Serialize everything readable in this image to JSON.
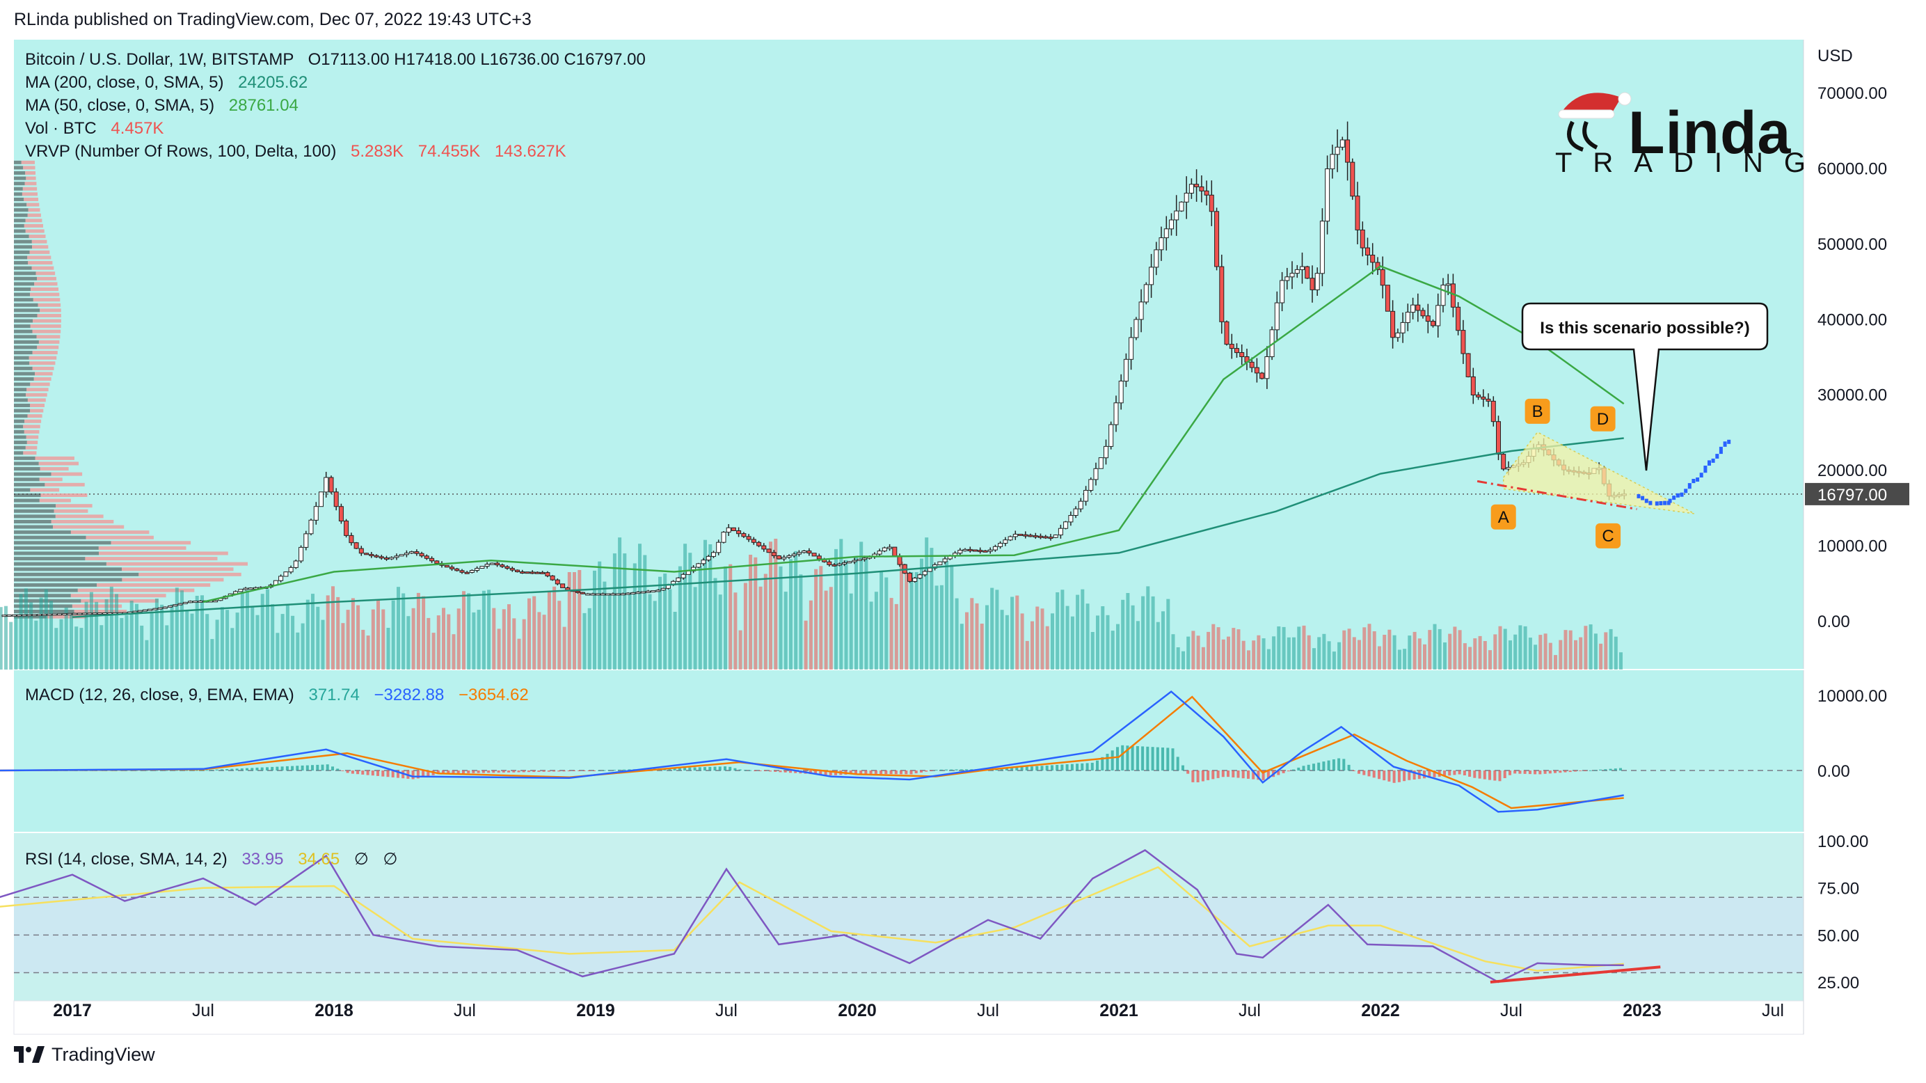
{
  "header": {
    "published": "RLinda published on TradingView.com, Dec 07, 2022 19:43 UTC+3"
  },
  "footer": {
    "brand": "TradingView"
  },
  "logo": {
    "name": "Linda",
    "sub": "TRADING"
  },
  "legend": {
    "symbol": "Bitcoin / U.S. Dollar, 1W, BITSTAMP",
    "ohlc": "O17113.00  H17418.00  L16736.00  C16797.00",
    "ma200_label": "MA (200, close, 0, SMA, 5)",
    "ma200_value": "24205.62",
    "ma50_label": "MA (50, close, 0, SMA, 5)",
    "ma50_value": "28761.04",
    "vol_label": "Vol · BTC",
    "vol_value": "4.457K",
    "vrvp_label": "VRVP (Number Of Rows, 100, Delta, 100)",
    "vrvp_v1": "5.283K",
    "vrvp_v2": "74.455K",
    "vrvp_v3": "143.627K"
  },
  "macd": {
    "label": "MACD (12, 26, close, 9, EMA, EMA)",
    "v1": "371.74",
    "v2": "−3282.88",
    "v3": "−3654.62"
  },
  "rsi": {
    "label": "RSI (14, close, SMA, 14, 2)",
    "v1": "33.95",
    "v2": "34.65",
    "v3": "∅",
    "v4": "∅"
  },
  "annotation": {
    "text": "Is this scenario possible?)"
  },
  "wave_labels": [
    "A",
    "B",
    "C",
    "D"
  ],
  "colors": {
    "bg_main": "#b9f2ee",
    "bg_rsi": "#c8f1ee",
    "up": "#26a69a",
    "down": "#ef5350",
    "ma50": "#3aa844",
    "ma200": "#1f8f77",
    "macd": "#2962ff",
    "signal": "#f57c00",
    "rsi": "#7e57c2",
    "rsi_ma": "#f6e05e",
    "wave_badge": "#f89c1c",
    "trend": "#e53935",
    "projection": "#2962ff"
  },
  "chart_data": {
    "type": "candlestick",
    "title": "Bitcoin / U.S. Dollar, 1W, BITSTAMP",
    "currency": "USD",
    "last_price": "16797.00",
    "price_axis_ticks": [
      "70000.00",
      "60000.00",
      "50000.00",
      "40000.00",
      "30000.00",
      "20000.00",
      "10000.00",
      "0.00"
    ],
    "price_axis_values": [
      70000,
      60000,
      50000,
      40000,
      30000,
      20000,
      10000,
      0
    ],
    "macd_axis_ticks": [
      "10000.00",
      "0.00"
    ],
    "rsi_axis_ticks": [
      "100.00",
      "75.00",
      "50.00",
      "25.00"
    ],
    "time_labels": [
      "2017",
      "Jul",
      "2018",
      "Jul",
      "2019",
      "Jul",
      "2020",
      "Jul",
      "2021",
      "Jul",
      "2022",
      "Jul",
      "2023",
      "Jul"
    ],
    "time_values": [
      2017.0,
      2017.5,
      2018.0,
      2018.5,
      2019.0,
      2019.5,
      2020.0,
      2020.5,
      2021.0,
      2021.5,
      2022.0,
      2022.5,
      2023.0,
      2023.5
    ],
    "price_path": [
      [
        2016.72,
        750
      ],
      [
        2016.9,
        900
      ],
      [
        2017.0,
        1000
      ],
      [
        2017.2,
        1100
      ],
      [
        2017.35,
        1800
      ],
      [
        2017.45,
        2600
      ],
      [
        2017.55,
        2700
      ],
      [
        2017.65,
        4300
      ],
      [
        2017.75,
        4500
      ],
      [
        2017.85,
        7500
      ],
      [
        2017.93,
        15000
      ],
      [
        2017.97,
        19000
      ],
      [
        2018.05,
        11000
      ],
      [
        2018.1,
        9000
      ],
      [
        2018.2,
        8200
      ],
      [
        2018.3,
        9200
      ],
      [
        2018.4,
        7500
      ],
      [
        2018.5,
        6300
      ],
      [
        2018.6,
        7700
      ],
      [
        2018.7,
        6500
      ],
      [
        2018.8,
        6400
      ],
      [
        2018.88,
        4200
      ],
      [
        2018.95,
        3600
      ],
      [
        2019.1,
        3600
      ],
      [
        2019.25,
        4100
      ],
      [
        2019.35,
        6500
      ],
      [
        2019.45,
        9000
      ],
      [
        2019.5,
        12500
      ],
      [
        2019.6,
        10500
      ],
      [
        2019.7,
        8200
      ],
      [
        2019.8,
        9300
      ],
      [
        2019.9,
        7300
      ],
      [
        2020.05,
        8500
      ],
      [
        2020.12,
        10000
      ],
      [
        2020.2,
        5200
      ],
      [
        2020.3,
        7500
      ],
      [
        2020.4,
        9500
      ],
      [
        2020.5,
        9200
      ],
      [
        2020.6,
        11500
      ],
      [
        2020.75,
        11000
      ],
      [
        2020.85,
        15500
      ],
      [
        2020.95,
        23000
      ],
      [
        2021.05,
        38000
      ],
      [
        2021.15,
        50000
      ],
      [
        2021.28,
        58000
      ],
      [
        2021.35,
        56000
      ],
      [
        2021.4,
        37000
      ],
      [
        2021.47,
        35000
      ],
      [
        2021.55,
        32000
      ],
      [
        2021.62,
        45000
      ],
      [
        2021.7,
        47000
      ],
      [
        2021.75,
        43000
      ],
      [
        2021.8,
        61000
      ],
      [
        2021.86,
        64000
      ],
      [
        2021.92,
        50000
      ],
      [
        2022.0,
        46000
      ],
      [
        2022.05,
        37000
      ],
      [
        2022.12,
        42000
      ],
      [
        2022.2,
        39000
      ],
      [
        2022.25,
        46000
      ],
      [
        2022.35,
        30000
      ],
      [
        2022.42,
        29000
      ],
      [
        2022.46,
        20000
      ],
      [
        2022.55,
        21000
      ],
      [
        2022.6,
        23500
      ],
      [
        2022.7,
        20000
      ],
      [
        2022.8,
        19500
      ],
      [
        2022.83,
        20800
      ],
      [
        2022.87,
        16500
      ],
      [
        2022.93,
        16797
      ]
    ],
    "ma50_path": [
      [
        2017.5,
        2500
      ],
      [
        2018.0,
        6500
      ],
      [
        2018.6,
        8000
      ],
      [
        2019.3,
        6500
      ],
      [
        2020.0,
        8500
      ],
      [
        2020.6,
        8700
      ],
      [
        2021.0,
        12000
      ],
      [
        2021.4,
        32000
      ],
      [
        2021.8,
        42000
      ],
      [
        2022.0,
        47000
      ],
      [
        2022.3,
        43000
      ],
      [
        2022.6,
        37000
      ],
      [
        2022.93,
        28761
      ]
    ],
    "ma200_path": [
      [
        2017.0,
        500
      ],
      [
        2018.0,
        2500
      ],
      [
        2019.0,
        4200
      ],
      [
        2020.0,
        6300
      ],
      [
        2021.0,
        9000
      ],
      [
        2021.6,
        14500
      ],
      [
        2022.0,
        19500
      ],
      [
        2022.5,
        22500
      ],
      [
        2022.93,
        24206
      ]
    ],
    "projection_points": [
      [
        2022.98,
        15800
      ],
      [
        2023.05,
        15900
      ],
      [
        2023.1,
        17000
      ],
      [
        2023.16,
        19000
      ],
      [
        2023.22,
        21500
      ],
      [
        2023.28,
        24000
      ]
    ],
    "wave_points": {
      "A": [
        2022.47,
        18000
      ],
      "B": [
        2022.6,
        25000
      ],
      "C": [
        2022.87,
        15500
      ],
      "D": [
        2022.85,
        24000
      ]
    },
    "macd_axis_values": [
      10000,
      0
    ],
    "macd_path": [
      [
        2016.72,
        0
      ],
      [
        2017.5,
        200
      ],
      [
        2017.97,
        2800
      ],
      [
        2018.3,
        -800
      ],
      [
        2018.9,
        -1000
      ],
      [
        2019.5,
        1500
      ],
      [
        2019.9,
        -800
      ],
      [
        2020.2,
        -1200
      ],
      [
        2020.5,
        300
      ],
      [
        2020.9,
        2500
      ],
      [
        2021.2,
        10500
      ],
      [
        2021.4,
        4500
      ],
      [
        2021.55,
        -1600
      ],
      [
        2021.7,
        2500
      ],
      [
        2021.85,
        5800
      ],
      [
        2022.05,
        500
      ],
      [
        2022.3,
        -2000
      ],
      [
        2022.45,
        -5500
      ],
      [
        2022.6,
        -5200
      ],
      [
        2022.93,
        -3283
      ]
    ],
    "signal_path": [
      [
        2016.72,
        0
      ],
      [
        2017.5,
        150
      ],
      [
        2018.05,
        2300
      ],
      [
        2018.4,
        -400
      ],
      [
        2018.9,
        -900
      ],
      [
        2019.55,
        1100
      ],
      [
        2020.0,
        -500
      ],
      [
        2020.3,
        -800
      ],
      [
        2020.5,
        100
      ],
      [
        2021.0,
        1800
      ],
      [
        2021.28,
        9800
      ],
      [
        2021.55,
        -300
      ],
      [
        2021.9,
        4800
      ],
      [
        2022.1,
        1300
      ],
      [
        2022.35,
        -2200
      ],
      [
        2022.5,
        -5000
      ],
      [
        2022.93,
        -3655
      ]
    ],
    "rsi_axis_values": [
      100,
      75,
      50,
      25
    ],
    "rsi_levels": [
      70,
      50,
      30
    ],
    "rsi_path": [
      [
        2016.72,
        70
      ],
      [
        2017.0,
        82
      ],
      [
        2017.2,
        68
      ],
      [
        2017.5,
        80
      ],
      [
        2017.7,
        66
      ],
      [
        2017.97,
        92
      ],
      [
        2018.15,
        50
      ],
      [
        2018.4,
        44
      ],
      [
        2018.7,
        42
      ],
      [
        2018.95,
        28
      ],
      [
        2019.3,
        40
      ],
      [
        2019.5,
        85
      ],
      [
        2019.7,
        45
      ],
      [
        2019.95,
        50
      ],
      [
        2020.2,
        35
      ],
      [
        2020.5,
        58
      ],
      [
        2020.7,
        48
      ],
      [
        2020.9,
        80
      ],
      [
        2021.1,
        95
      ],
      [
        2021.3,
        74
      ],
      [
        2021.45,
        40
      ],
      [
        2021.55,
        38
      ],
      [
        2021.8,
        66
      ],
      [
        2021.95,
        45
      ],
      [
        2022.2,
        44
      ],
      [
        2022.45,
        25
      ],
      [
        2022.6,
        35
      ],
      [
        2022.8,
        34
      ],
      [
        2022.93,
        33.95
      ]
    ],
    "rsi_ma_path": [
      [
        2016.72,
        65
      ],
      [
        2017.5,
        75
      ],
      [
        2018.0,
        76
      ],
      [
        2018.3,
        48
      ],
      [
        2018.9,
        40
      ],
      [
        2019.3,
        42
      ],
      [
        2019.55,
        78
      ],
      [
        2019.9,
        52
      ],
      [
        2020.3,
        46
      ],
      [
        2020.6,
        54
      ],
      [
        2021.15,
        86
      ],
      [
        2021.5,
        44
      ],
      [
        2021.8,
        55
      ],
      [
        2022.0,
        55
      ],
      [
        2022.4,
        36
      ],
      [
        2022.6,
        31
      ],
      [
        2022.93,
        34.65
      ]
    ],
    "rsi_trendline": [
      [
        2022.42,
        25
      ],
      [
        2023.07,
        33
      ]
    ]
  }
}
